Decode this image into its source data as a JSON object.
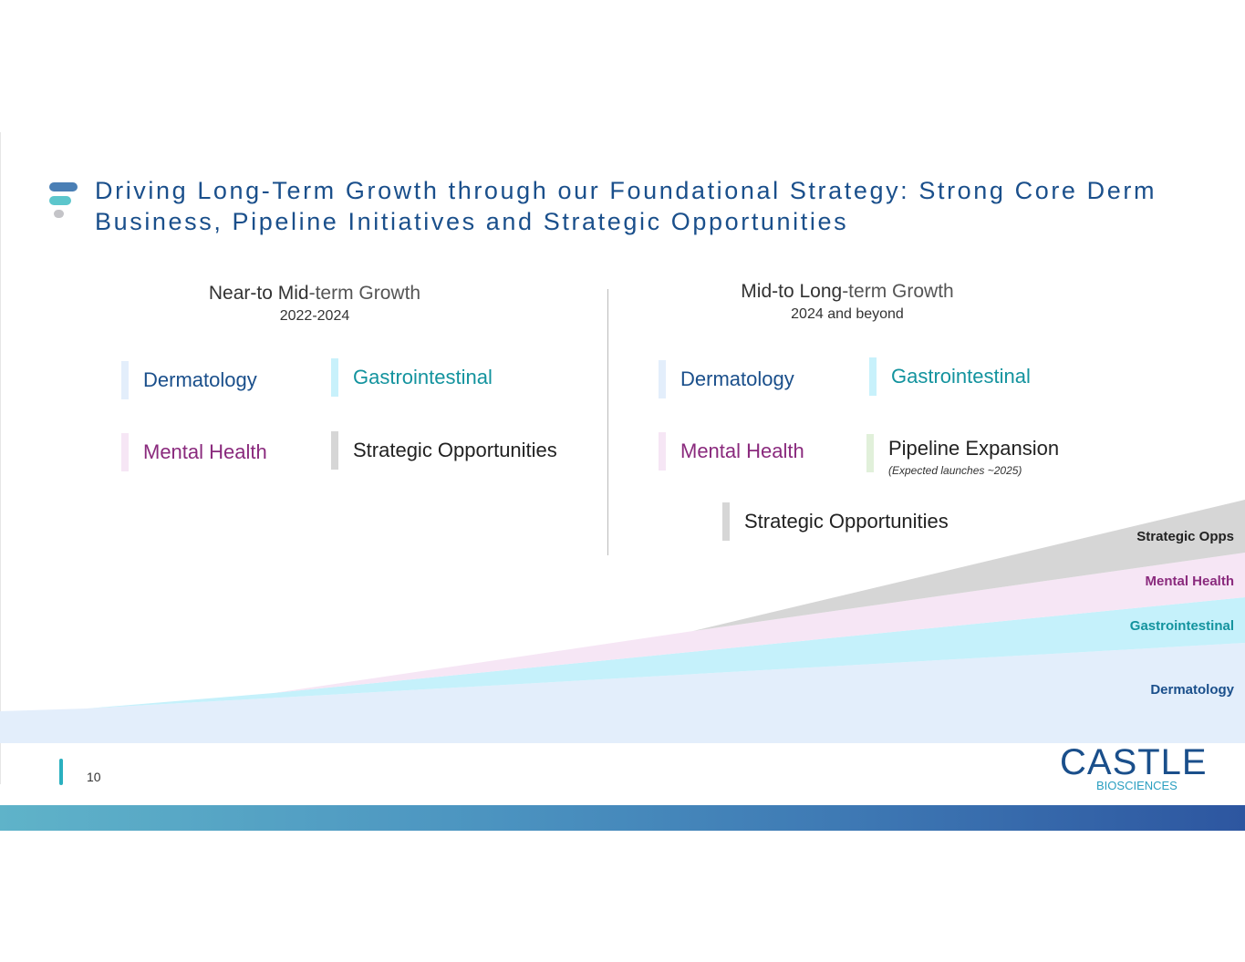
{
  "title": "Driving Long-Term Growth through our Foundational Strategy: Strong Core Derm Business, Pipeline Initiatives and Strategic Opportunities",
  "left_column": {
    "heading_bold": "Near-to Mid",
    "heading_rest": "-term Growth",
    "years": "2022-2024",
    "items": [
      {
        "label": "Dermatology",
        "color": "#1a4f8b",
        "bar": "#e3eefb"
      },
      {
        "label": "Gastrointestinal",
        "color": "#13939e",
        "bar": "#c8f1fb"
      },
      {
        "label": "Mental Health",
        "color": "#8a2a7d",
        "bar": "#f6e6f5"
      },
      {
        "label": "Strategic Opportunities",
        "color": "#222222",
        "bar": "#d6d6d6"
      }
    ]
  },
  "right_column": {
    "heading_bold": "Mid-to Long",
    "heading_rest": "-term Growth",
    "years": "2024 and beyond",
    "items": [
      {
        "label": "Dermatology",
        "color": "#1a4f8b",
        "bar": "#e3eefb"
      },
      {
        "label": "Gastrointestinal",
        "color": "#13939e",
        "bar": "#c8f1fb"
      },
      {
        "label": "Mental Health",
        "color": "#8a2a7d",
        "bar": "#f6e6f5"
      },
      {
        "label": "Pipeline Expansion",
        "sub": "(Expected launches ~2025)",
        "color": "#222222",
        "bar": "#e1f0da"
      },
      {
        "label": "Strategic Opportunities",
        "color": "#222222",
        "bar": "#d6d6d6"
      }
    ]
  },
  "bands": [
    {
      "label": "Strategic Opps",
      "color": "#222222",
      "fill": "#d6d6d6"
    },
    {
      "label": "Mental Health",
      "color": "#8a2a7d",
      "fill": "#f6e6f5"
    },
    {
      "label": "Gastrointestinal",
      "color": "#13939e",
      "fill": "#c5f1fb"
    },
    {
      "label": "Dermatology",
      "color": "#1a4f8b",
      "fill": "#e3eefb"
    }
  ],
  "footer": {
    "page_number": "10",
    "logo_text": "CASTLE",
    "logo_subtext": "BIOSCIENCES"
  }
}
